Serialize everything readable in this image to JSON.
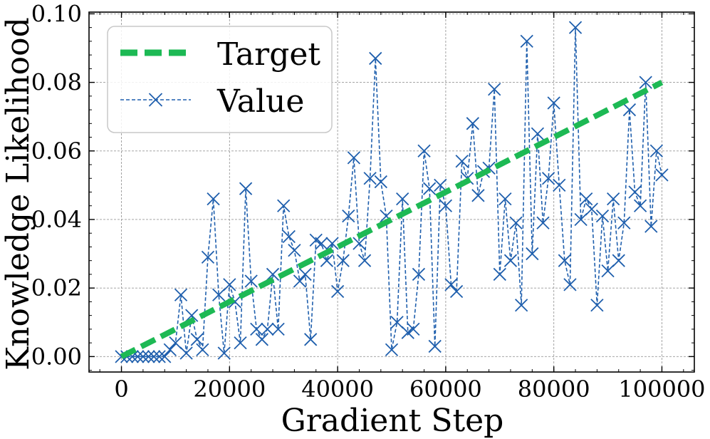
{
  "chart_data": {
    "type": "line",
    "title": "",
    "xlabel": "Gradient Step",
    "ylabel": "Knowledge Likelihood",
    "xlim": [
      -6000,
      106000
    ],
    "ylim": [
      -0.0045,
      0.1005
    ],
    "xticks": [
      0,
      20000,
      40000,
      60000,
      80000,
      100000
    ],
    "yticks": [
      0.0,
      0.02,
      0.04,
      0.06,
      0.08,
      0.1
    ],
    "xtick_labels": [
      "0",
      "20000",
      "40000",
      "60000",
      "80000",
      "100000"
    ],
    "ytick_labels": [
      "0.00",
      "0.02",
      "0.04",
      "0.06",
      "0.08",
      "0.10"
    ],
    "grid": true,
    "legend_position": "top-left",
    "series": [
      {
        "name": "Target",
        "style": "dashed-thick",
        "color": "#1db954",
        "x": [
          0,
          100000
        ],
        "y": [
          0.0,
          0.08
        ]
      },
      {
        "name": "Value",
        "style": "dashed-x-markers",
        "color": "#1f5fad",
        "x": [
          0,
          1000,
          2000,
          3000,
          4000,
          5000,
          6000,
          7000,
          8000,
          9000,
          10000,
          11000,
          12000,
          13000,
          14000,
          15000,
          16000,
          17000,
          18000,
          19000,
          20000,
          21000,
          22000,
          23000,
          24000,
          25000,
          26000,
          27000,
          28000,
          29000,
          30000,
          31000,
          32000,
          33000,
          34000,
          35000,
          36000,
          37000,
          38000,
          39000,
          40000,
          41000,
          42000,
          43000,
          44000,
          45000,
          46000,
          47000,
          48000,
          49000,
          50000,
          51000,
          52000,
          53000,
          54000,
          55000,
          56000,
          57000,
          58000,
          59000,
          60000,
          61000,
          62000,
          63000,
          64000,
          65000,
          66000,
          67000,
          68000,
          69000,
          70000,
          71000,
          72000,
          73000,
          74000,
          75000,
          76000,
          77000,
          78000,
          79000,
          80000,
          81000,
          82000,
          83000,
          84000,
          85000,
          86000,
          87000,
          88000,
          89000,
          90000,
          91000,
          92000,
          93000,
          94000,
          95000,
          96000,
          97000,
          98000,
          99000,
          100000
        ],
        "y": [
          0.0,
          0.0,
          0.0,
          0.0,
          0.0,
          0.0,
          0.0,
          0.0,
          0.0,
          0.002,
          0.004,
          0.018,
          0.001,
          0.012,
          0.005,
          0.002,
          0.029,
          0.046,
          0.018,
          0.001,
          0.021,
          0.016,
          0.004,
          0.049,
          0.022,
          0.008,
          0.005,
          0.008,
          0.024,
          0.008,
          0.044,
          0.035,
          0.031,
          0.022,
          0.024,
          0.005,
          0.034,
          0.033,
          0.028,
          0.033,
          0.019,
          0.028,
          0.041,
          0.058,
          0.033,
          0.028,
          0.052,
          0.087,
          0.051,
          0.041,
          0.002,
          0.01,
          0.046,
          0.007,
          0.008,
          0.024,
          0.06,
          0.049,
          0.003,
          0.05,
          0.044,
          0.021,
          0.019,
          0.057,
          0.052,
          0.068,
          0.047,
          0.054,
          0.055,
          0.078,
          0.024,
          0.046,
          0.028,
          0.039,
          0.015,
          0.092,
          0.03,
          0.065,
          0.039,
          0.052,
          0.074,
          0.05,
          0.028,
          0.021,
          0.096,
          0.04,
          0.046,
          0.043,
          0.015,
          0.041,
          0.025,
          0.046,
          0.028,
          0.039,
          0.072,
          0.048,
          0.044,
          0.08,
          0.038,
          0.06,
          0.053
        ]
      }
    ]
  }
}
